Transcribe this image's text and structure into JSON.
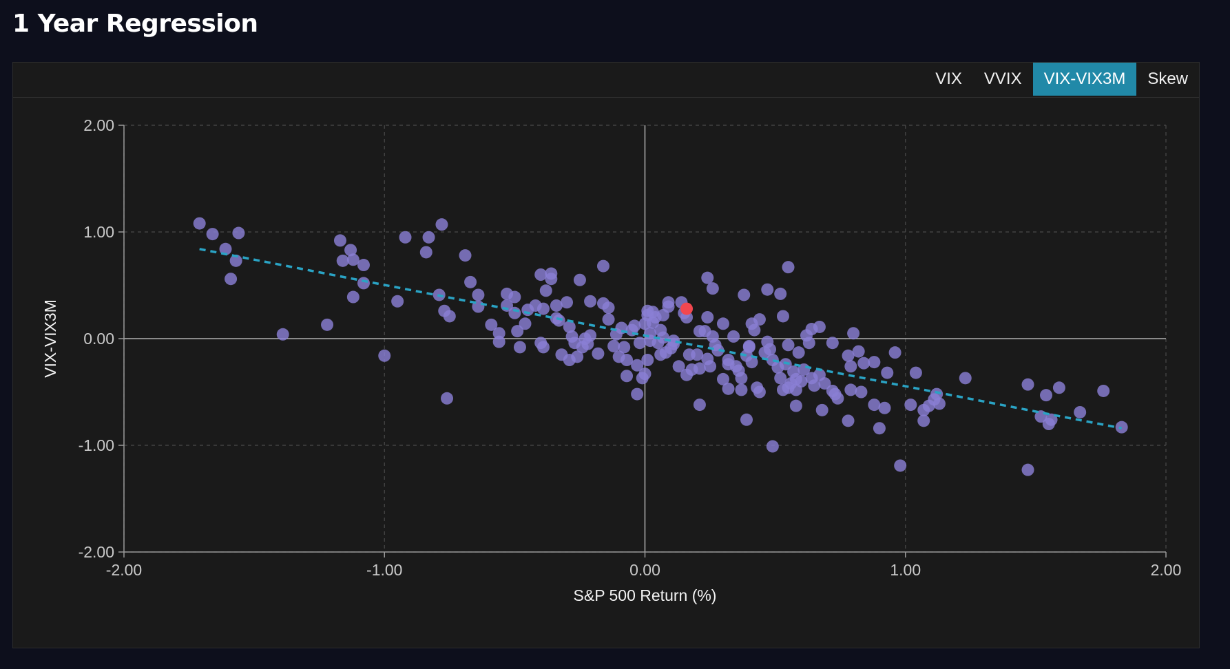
{
  "header": {
    "title": "1 Year Regression"
  },
  "tabs": [
    {
      "label": "VIX",
      "active": false
    },
    {
      "label": "VVIX",
      "active": false
    },
    {
      "label": "VIX-VIX3M",
      "active": true
    },
    {
      "label": "Skew",
      "active": false
    }
  ],
  "colors": {
    "accent": "#2189a8",
    "point": "#8a7fd4",
    "highlight": "#f2474f",
    "trend": "#2aa3c4"
  },
  "chart_data": {
    "type": "scatter",
    "xlabel": "S&P 500 Return (%)",
    "ylabel": "VIX-VIX3M",
    "xlim": [
      -2,
      2
    ],
    "ylim": [
      -2,
      2
    ],
    "x_ticks": [
      "-2.00",
      "-1.00",
      "0.00",
      "1.00",
      "2.00"
    ],
    "y_ticks": [
      "2.00",
      "1.00",
      "0.00",
      "-1.00",
      "-2.00"
    ],
    "grid": true,
    "trendline": {
      "x": [
        -1.71,
        1.83
      ],
      "y": [
        0.84,
        -0.84
      ]
    },
    "highlight_point": {
      "x": 0.16,
      "y": 0.28
    },
    "points": [
      [
        -1.71,
        1.08
      ],
      [
        -1.66,
        0.98
      ],
      [
        -1.61,
        0.84
      ],
      [
        -1.57,
        0.73
      ],
      [
        -1.59,
        0.56
      ],
      [
        -1.56,
        0.99
      ],
      [
        -1.39,
        0.04
      ],
      [
        -1.22,
        0.13
      ],
      [
        -1.17,
        0.92
      ],
      [
        -1.16,
        0.73
      ],
      [
        -1.13,
        0.83
      ],
      [
        -1.12,
        0.74
      ],
      [
        -1.12,
        0.39
      ],
      [
        -1.08,
        0.69
      ],
      [
        -1.08,
        0.52
      ],
      [
        -1.0,
        -0.16
      ],
      [
        -0.95,
        0.35
      ],
      [
        -0.92,
        0.95
      ],
      [
        -0.83,
        0.95
      ],
      [
        -0.84,
        0.81
      ],
      [
        -0.78,
        1.07
      ],
      [
        -0.79,
        0.41
      ],
      [
        -0.77,
        0.26
      ],
      [
        -0.75,
        0.21
      ],
      [
        -0.76,
        -0.56
      ],
      [
        -0.69,
        0.78
      ],
      [
        -0.67,
        0.53
      ],
      [
        -0.64,
        0.41
      ],
      [
        -0.64,
        0.3
      ],
      [
        -0.59,
        0.13
      ],
      [
        -0.56,
        0.05
      ],
      [
        -0.56,
        -0.03
      ],
      [
        -0.53,
        0.42
      ],
      [
        -0.53,
        0.31
      ],
      [
        -0.5,
        0.39
      ],
      [
        -0.5,
        0.24
      ],
      [
        -0.49,
        0.07
      ],
      [
        -0.48,
        -0.08
      ],
      [
        -0.46,
        0.14
      ],
      [
        -0.45,
        0.27
      ],
      [
        -0.42,
        0.31
      ],
      [
        -0.4,
        -0.04
      ],
      [
        -0.39,
        -0.08
      ],
      [
        -0.39,
        0.28
      ],
      [
        -0.4,
        0.6
      ],
      [
        -0.38,
        0.45
      ],
      [
        -0.36,
        0.61
      ],
      [
        -0.36,
        0.56
      ],
      [
        -0.34,
        0.31
      ],
      [
        -0.34,
        0.19
      ],
      [
        -0.33,
        0.17
      ],
      [
        -0.32,
        -0.15
      ],
      [
        -0.3,
        0.34
      ],
      [
        -0.29,
        0.11
      ],
      [
        -0.29,
        -0.2
      ],
      [
        -0.28,
        0.02
      ],
      [
        -0.27,
        -0.04
      ],
      [
        -0.26,
        -0.17
      ],
      [
        -0.25,
        0.55
      ],
      [
        -0.24,
        -0.08
      ],
      [
        -0.23,
        0.0
      ],
      [
        -0.22,
        -0.05
      ],
      [
        -0.21,
        0.03
      ],
      [
        -0.21,
        0.35
      ],
      [
        -0.18,
        -0.14
      ],
      [
        -0.16,
        0.68
      ],
      [
        -0.16,
        0.33
      ],
      [
        -0.14,
        0.18
      ],
      [
        -0.14,
        0.29
      ],
      [
        -0.12,
        -0.07
      ],
      [
        -0.11,
        0.04
      ],
      [
        -0.1,
        -0.17
      ],
      [
        -0.09,
        0.1
      ],
      [
        -0.08,
        -0.08
      ],
      [
        -0.07,
        -0.2
      ],
      [
        -0.07,
        -0.35
      ],
      [
        -0.05,
        0.08
      ],
      [
        -0.04,
        0.12
      ],
      [
        -0.03,
        -0.25
      ],
      [
        -0.03,
        -0.52
      ],
      [
        -0.02,
        -0.04
      ],
      [
        -0.01,
        -0.37
      ],
      [
        0.0,
        0.14
      ],
      [
        0.0,
        -0.33
      ],
      [
        0.01,
        0.22
      ],
      [
        0.01,
        -0.2
      ],
      [
        0.01,
        0.26
      ],
      [
        0.02,
        -0.02
      ],
      [
        0.02,
        0.05
      ],
      [
        0.03,
        0.25
      ],
      [
        0.03,
        0.15
      ],
      [
        0.04,
        0.2
      ],
      [
        0.05,
        -0.04
      ],
      [
        0.06,
        0.08
      ],
      [
        0.06,
        -0.15
      ],
      [
        0.07,
        0.22
      ],
      [
        0.07,
        0.01
      ],
      [
        0.08,
        -0.13
      ],
      [
        0.09,
        0.3
      ],
      [
        0.09,
        0.34
      ],
      [
        0.1,
        -0.09
      ],
      [
        0.11,
        -0.05
      ],
      [
        0.11,
        -0.02
      ],
      [
        0.13,
        -0.26
      ],
      [
        0.14,
        0.34
      ],
      [
        0.15,
        0.24
      ],
      [
        0.16,
        0.2
      ],
      [
        0.16,
        -0.34
      ],
      [
        0.17,
        -0.15
      ],
      [
        0.18,
        -0.29
      ],
      [
        0.2,
        -0.15
      ],
      [
        0.21,
        -0.28
      ],
      [
        0.21,
        0.07
      ],
      [
        0.21,
        -0.62
      ],
      [
        0.23,
        0.07
      ],
      [
        0.24,
        0.2
      ],
      [
        0.24,
        0.57
      ],
      [
        0.24,
        -0.19
      ],
      [
        0.25,
        -0.26
      ],
      [
        0.26,
        0.47
      ],
      [
        0.26,
        0.02
      ],
      [
        0.27,
        -0.06
      ],
      [
        0.28,
        -0.11
      ],
      [
        0.3,
        0.14
      ],
      [
        0.3,
        -0.38
      ],
      [
        0.32,
        -0.24
      ],
      [
        0.32,
        -0.2
      ],
      [
        0.32,
        -0.47
      ],
      [
        0.34,
        0.02
      ],
      [
        0.35,
        -0.26
      ],
      [
        0.36,
        -0.3
      ],
      [
        0.37,
        -0.48
      ],
      [
        0.37,
        -0.37
      ],
      [
        0.38,
        0.41
      ],
      [
        0.39,
        -0.16
      ],
      [
        0.39,
        -0.76
      ],
      [
        0.4,
        -0.07
      ],
      [
        0.4,
        -0.08
      ],
      [
        0.41,
        -0.22
      ],
      [
        0.41,
        0.14
      ],
      [
        0.42,
        0.08
      ],
      [
        0.43,
        -0.46
      ],
      [
        0.44,
        -0.5
      ],
      [
        0.44,
        0.18
      ],
      [
        0.46,
        -0.13
      ],
      [
        0.47,
        0.46
      ],
      [
        0.47,
        -0.03
      ],
      [
        0.48,
        -0.1
      ],
      [
        0.49,
        -0.2
      ],
      [
        0.49,
        -1.01
      ],
      [
        0.51,
        -0.27
      ],
      [
        0.52,
        -0.37
      ],
      [
        0.52,
        0.42
      ],
      [
        0.53,
        0.21
      ],
      [
        0.53,
        -0.48
      ],
      [
        0.54,
        -0.24
      ],
      [
        0.55,
        -0.46
      ],
      [
        0.55,
        0.67
      ],
      [
        0.55,
        -0.06
      ],
      [
        0.56,
        -0.42
      ],
      [
        0.57,
        -0.31
      ],
      [
        0.58,
        -0.38
      ],
      [
        0.58,
        -0.63
      ],
      [
        0.58,
        -0.48
      ],
      [
        0.59,
        -0.13
      ],
      [
        0.6,
        -0.4
      ],
      [
        0.61,
        -0.29
      ],
      [
        0.62,
        0.03
      ],
      [
        0.63,
        -0.04
      ],
      [
        0.64,
        0.09
      ],
      [
        0.64,
        -0.37
      ],
      [
        0.65,
        -0.44
      ],
      [
        0.67,
        -0.34
      ],
      [
        0.67,
        0.11
      ],
      [
        0.68,
        -0.67
      ],
      [
        0.69,
        -0.42
      ],
      [
        0.72,
        -0.04
      ],
      [
        0.72,
        -0.49
      ],
      [
        0.73,
        -0.52
      ],
      [
        0.74,
        -0.56
      ],
      [
        0.78,
        -0.16
      ],
      [
        0.78,
        -0.77
      ],
      [
        0.79,
        -0.48
      ],
      [
        0.79,
        -0.26
      ],
      [
        0.8,
        0.05
      ],
      [
        0.82,
        -0.12
      ],
      [
        0.83,
        -0.5
      ],
      [
        0.84,
        -0.23
      ],
      [
        0.88,
        -0.22
      ],
      [
        0.88,
        -0.62
      ],
      [
        0.9,
        -0.84
      ],
      [
        0.92,
        -0.65
      ],
      [
        0.93,
        -0.32
      ],
      [
        0.96,
        -0.13
      ],
      [
        0.98,
        -1.19
      ],
      [
        1.02,
        -0.62
      ],
      [
        1.04,
        -0.32
      ],
      [
        1.07,
        -0.77
      ],
      [
        1.07,
        -0.67
      ],
      [
        1.09,
        -0.63
      ],
      [
        1.11,
        -0.57
      ],
      [
        1.12,
        -0.52
      ],
      [
        1.13,
        -0.61
      ],
      [
        1.23,
        -0.37
      ],
      [
        1.47,
        -0.43
      ],
      [
        1.47,
        -1.23
      ],
      [
        1.52,
        -0.73
      ],
      [
        1.54,
        -0.53
      ],
      [
        1.55,
        -0.8
      ],
      [
        1.56,
        -0.76
      ],
      [
        1.59,
        -0.46
      ],
      [
        1.67,
        -0.69
      ],
      [
        1.76,
        -0.49
      ],
      [
        1.83,
        -0.83
      ]
    ]
  }
}
